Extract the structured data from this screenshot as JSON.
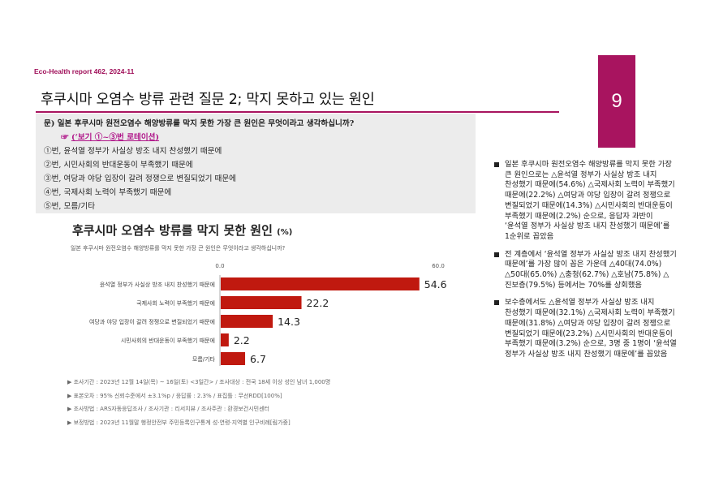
{
  "header": {
    "report_tag": "Eco-Health report 462, 2024-11",
    "page_number": "9",
    "title": "후쿠시마 오염수 방류 관련 질문 2; 막지 못하고 있는 원인"
  },
  "survey": {
    "question": "문) 일본 후쿠시마 원전오염수 해양방류를 막지 못한 가장 큰 원인은 무엇이라고 생각하십니까?",
    "hint_arrow": "☞",
    "hint": "(‘보기 ①~③번 로테이션)",
    "options": [
      "①번, 윤석열 정부가 사실상 방조 내지 찬성했기 때문에",
      "②번, 시민사회의 반대운동이 부족했기 때문에",
      "③번, 여당과 야당 입장이 갈려 정쟁으로 변질되었기 때문에",
      "④번, 국제사회 노력이 부족했기 때문에",
      "⑤번, 모름/기타"
    ]
  },
  "chart": {
    "title": "후쿠시마 오염수 방류를 막지 못한 원인",
    "unit": "(%)",
    "subtitle": "일본 후쿠시마 원전오염수 해양방류를 막지 못한 가장 큰 원인은 무엇이라고 생각하십니까?",
    "notes": [
      "▶ 조사기간 : 2023년 12월 14일(목) ~ 16일(토) <3일간> / 조사대상 : 전국 18세 이상 성인 남녀 1,000명",
      "▶ 표본오차 : 95% 신뢰수준에서 ±3.1%p / 응답률 : 2.3% / 표집틀 : 무선RDD[100%]",
      "▶ 조사방법 : ARS자동응답조사 / 조사기관 : 리서치뷰 / 조사주관 : 환경보건시민센터",
      "▶ 보정방법 : 2023년 11월말 행정안전부 주민등록인구통계 성·연령·지역별 인구비례[림가중]"
    ]
  },
  "chart_data": {
    "type": "bar",
    "orientation": "horizontal",
    "categories": [
      "윤석열 정부가 사실상 방조 내지 찬성했기 때문에",
      "국제사회 노력이 부족했기 때문에",
      "여당과 야당 입장이 갈려 정쟁으로 변질되었기 때문에",
      "시민사회의 반대운동이 부족했기 때문에",
      "모름/기타"
    ],
    "values": [
      54.6,
      22.2,
      14.3,
      2.2,
      6.7
    ],
    "xlim": [
      0,
      60
    ],
    "tick_labels": [
      "0.0",
      "60.0"
    ],
    "bar_color": "#c0190f"
  },
  "summary": {
    "bullets": [
      "일본 후쿠시마 원전오염수 해양방류를 막지 못한 가장 큰 원인으로는 △윤석열 정부가 사실상 방조 내지 찬성했기 때문에(54.6%) △국제사회 노력이 부족했기 때문에(22.2%) △여당과 야당 입장이 갈려 정쟁으로 변질되었기 때문에(14.3%) △시민사회의 반대운동이 부족했기 때문에(2.2%) 순으로, 응답자 과반이 ‘윤석열 정부가 사실상 방조 내지 찬성했기 때문에’를 1순위로 꼽았음",
      "전 계층에서 ‘윤석열 정부가 사실상 방조 내지 찬성했기 때문에’를 가장 많이 꼽은 가운데 △40대(74.0%) △50대(65.0%) △충청(62.7%) △호남(75.8%) △진보층(79.5%) 등에서는 70%를 상회했음",
      "보수층에서도 △윤석열 정부가 사실상 방조 내지 찬성했기 때문에(32.1%) △국제사회 노력이 부족했기 때문에(31.8%) △여당과 야당 입장이 갈려 정쟁으로 변질되었기 때문에(23.2%) △시민사회의 반대운동이 부족했기 때문에(3.2%) 순으로, 3명 중 1명이 ‘윤석열 정부가 사실상 방조 내지 찬성했기 때문에’를 꼽았음"
    ]
  },
  "colors": {
    "accent": "#a8145f",
    "bar": "#c0190f",
    "hint": "#b0178a"
  }
}
